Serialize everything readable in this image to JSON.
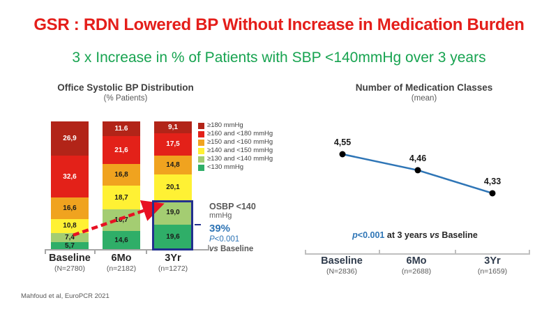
{
  "slide": {
    "title": "GSR : RDN Lowered BP Without Increase in Medication Burden",
    "subtitle": "3 x Increase in % of Patients with SBP <140mmHg over 3 years",
    "citation": "Mahfoud et al, EuroPCR  2021",
    "colors": {
      "title_red": "#e41e1a",
      "subtitle_green": "#17a350",
      "accent_blue": "#2e74b5",
      "highlight_navy": "#232f8e",
      "arrow_red": "#e81123"
    }
  },
  "chart_data": [
    {
      "type": "bar",
      "variant": "stacked-percent",
      "title": "Office Systolic BP Distribution",
      "subtitle": "(% Patients)",
      "categories": [
        "Baseline",
        "6Mo",
        "3Yr"
      ],
      "category_sublabels": [
        "(N=2780)",
        "(n=2182)",
        "(n=1272)"
      ],
      "legend_position": "right",
      "series": [
        {
          "name": "≥180 mmHg",
          "color": "#b22418",
          "label_color": "#ffffff",
          "values": [
            26.9,
            11.6,
            9.1
          ]
        },
        {
          "name": "≥160 and <180 mmHg",
          "color": "#e32119",
          "label_color": "#ffffff",
          "values": [
            32.6,
            21.6,
            17.5
          ]
        },
        {
          "name": "≥150 and <160 mmHg",
          "color": "#f0a31f",
          "label_color": "#1a1a1a",
          "values": [
            16.6,
            16.8,
            14.8
          ]
        },
        {
          "name": "≥140 and <150 mmHg",
          "color": "#fff134",
          "label_color": "#1a1a1a",
          "values": [
            10.8,
            18.7,
            20.1
          ]
        },
        {
          "name": "≥130 and <140 mmHg",
          "color": "#a4cd72",
          "label_color": "#1a1a1a",
          "values": [
            7.4,
            16.7,
            19.0
          ]
        },
        {
          "name": "<130 mmHg",
          "color": "#2fae68",
          "label_color": "#1a1a1a",
          "values": [
            5.7,
            14.6,
            19.6
          ]
        }
      ],
      "value_labels": [
        [
          "26,9",
          "32,6",
          "16,6",
          "10,8",
          "7,4",
          "5,7"
        ],
        [
          "11.6",
          "21,6",
          "16,8",
          "18,7",
          "16,7",
          "14,6"
        ],
        [
          "9,1",
          "17,5",
          "14,8",
          "20,1",
          "19,0",
          "19,6"
        ]
      ],
      "annotation": {
        "line1": "OSBP <140",
        "line2": "mmHg",
        "pct": "39%",
        "pval_italic": "P",
        "pval_rest": "<0.001",
        "vs_italic": "vs",
        "vs_rest": " Baseline"
      }
    },
    {
      "type": "line",
      "title": "Number of Medication Classes",
      "subtitle": "(mean)",
      "categories": [
        "Baseline",
        "6Mo",
        "3Yr"
      ],
      "category_sublabels": [
        "(N=2836)",
        "(n=2688)",
        "(n=1659)"
      ],
      "values": [
        4.55,
        4.46,
        4.33
      ],
      "value_labels": [
        "4,55",
        "4,46",
        "4,33"
      ],
      "line_color": "#2e75b6",
      "point_color": "#000000",
      "note": {
        "p_italic": "p",
        "p_rest": "<0.001",
        "mid": " at 3 years ",
        "vs_italic": "vs",
        "end": " Baseline"
      }
    }
  ]
}
